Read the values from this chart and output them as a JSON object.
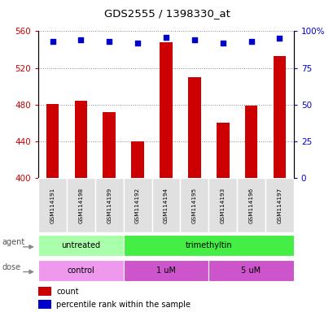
{
  "title": "GDS2555 / 1398330_at",
  "samples": [
    "GSM114191",
    "GSM114198",
    "GSM114199",
    "GSM114192",
    "GSM114194",
    "GSM114195",
    "GSM114193",
    "GSM114196",
    "GSM114197"
  ],
  "count_values": [
    481,
    484,
    472,
    440,
    548,
    510,
    460,
    479,
    533
  ],
  "percentile_values": [
    93,
    94,
    93,
    92,
    96,
    94,
    92,
    93,
    95
  ],
  "y_min": 400,
  "y_max": 560,
  "y_ticks": [
    400,
    440,
    480,
    520,
    560
  ],
  "bar_color": "#cc0000",
  "dot_color": "#0000cc",
  "bar_width": 0.45,
  "agent_groups": [
    {
      "label": "untreated",
      "start": 0,
      "end": 3,
      "color": "#aaffaa"
    },
    {
      "label": "trimethyltin",
      "start": 3,
      "end": 9,
      "color": "#44ee44"
    }
  ],
  "dose_groups": [
    {
      "label": "control",
      "start": 0,
      "end": 3,
      "color": "#ee99ee"
    },
    {
      "label": "1 uM",
      "start": 3,
      "end": 6,
      "color": "#cc55cc"
    },
    {
      "label": "5 uM",
      "start": 6,
      "end": 9,
      "color": "#cc55cc"
    }
  ],
  "left_axis_color": "#cc0000",
  "right_axis_color": "#0000cc",
  "grid_color": "#888888",
  "legend_count_color": "#cc0000",
  "legend_pct_color": "#0000cc",
  "left_label_color": "#777777"
}
